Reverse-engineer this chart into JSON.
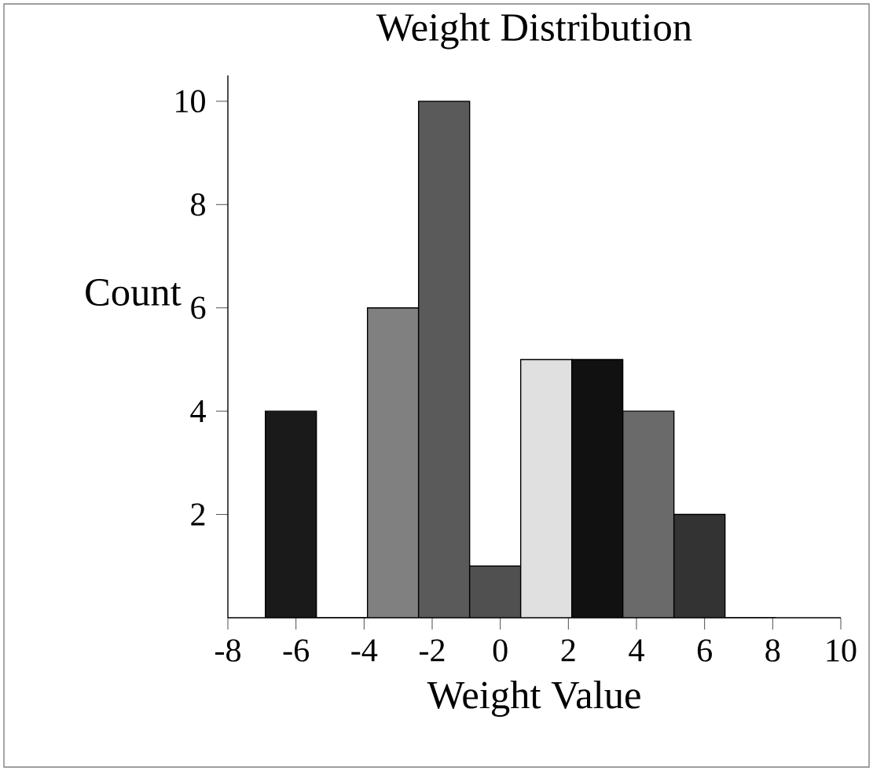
{
  "chart_data": {
    "type": "histogram",
    "title": "Weight Distribution",
    "xlabel": "Weight Value",
    "ylabel": "Count",
    "bins": [
      -6.9,
      -5.4,
      -3.9,
      -2.4,
      -0.9,
      0.6,
      2.1,
      3.6,
      5.1,
      6.6,
      8.1
    ],
    "values": [
      4,
      0,
      6,
      10,
      1,
      5,
      5,
      4,
      2,
      0
    ],
    "colors": [
      "#1a1a1a",
      "#555555",
      "#808080",
      "#5a5a5a",
      "#505050",
      "#e0e0e0",
      "#111111",
      "#6a6a6a",
      "#333333",
      "#555555"
    ],
    "xlim": [
      -8,
      10
    ],
    "xticks": [
      -8,
      -6,
      -4,
      -2,
      0,
      2,
      4,
      6,
      8,
      10
    ],
    "ylim": [
      0,
      10.5
    ],
    "yticks": [
      2,
      4,
      6,
      8,
      10
    ],
    "grid": false
  }
}
